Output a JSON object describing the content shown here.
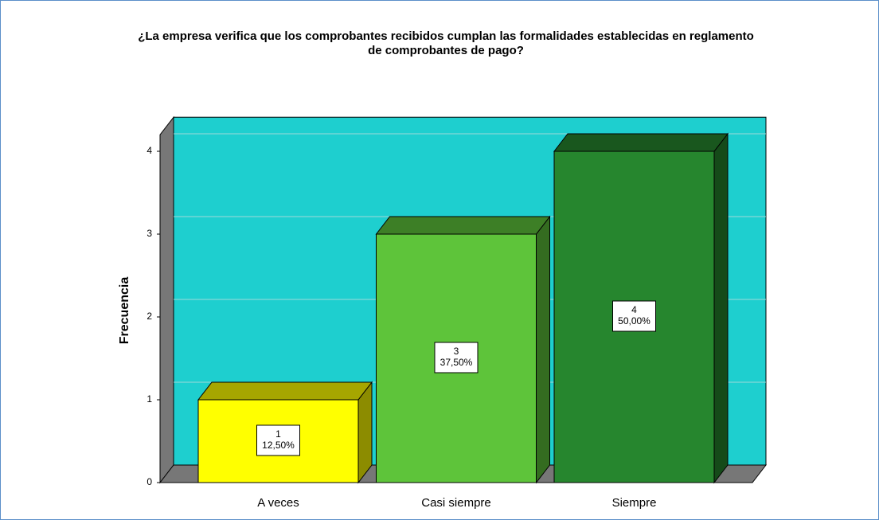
{
  "chart_data": {
    "type": "bar3d",
    "title": [
      "¿La empresa verifica que los comprobantes recibidos cumplan las formalidades establecidas en reglamento",
      "de comprobantes de pago?"
    ],
    "y_label": "Frecuencia",
    "categories": [
      "A veces",
      "Casi siempre",
      "Siempre"
    ],
    "values": [
      1,
      3,
      4
    ],
    "percentages": [
      12.5,
      37.5,
      50
    ],
    "percentage_labels": [
      "12,50%",
      "37,50%",
      "50,00%"
    ],
    "colors": [
      "#ffff00",
      "#5ec43a",
      "#26862e"
    ],
    "wall_color": "#1ecfcf",
    "ylim": [
      0,
      4.2
    ],
    "yticks": [
      0,
      1,
      2,
      3,
      4
    ],
    "grid": true
  }
}
